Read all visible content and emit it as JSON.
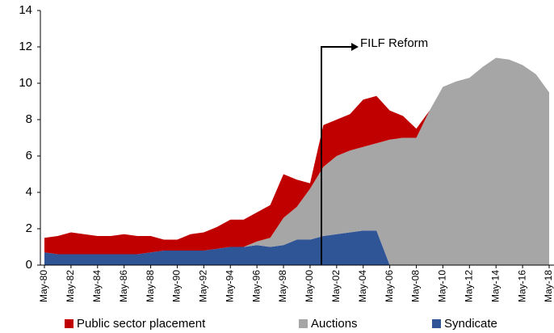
{
  "chart_data": {
    "type": "stacked_area",
    "categories": [
      "May-80",
      null,
      "May-82",
      null,
      "May-84",
      null,
      "May-86",
      null,
      "May-88",
      null,
      "May-90",
      null,
      "May-92",
      null,
      "May-94",
      null,
      "May-96",
      null,
      "May-98",
      null,
      "May-00",
      null,
      "May-02",
      null,
      "May-04",
      null,
      "May-06",
      null,
      "May-08",
      null,
      "May-10",
      null,
      "May-12",
      null,
      "May-14",
      null,
      "May-16",
      null,
      "May-18"
    ],
    "series": [
      {
        "name": "Public sector placement",
        "color": "#c00000",
        "values": [
          0.8,
          1.0,
          1.2,
          1.1,
          1.0,
          1.0,
          1.1,
          1.0,
          0.9,
          0.6,
          0.6,
          0.9,
          1.0,
          1.2,
          1.5,
          1.5,
          1.6,
          1.8,
          2.4,
          1.5,
          0.3,
          2.3,
          2.0,
          2.0,
          2.6,
          2.6,
          1.6,
          1.2,
          0.5,
          0,
          0,
          0,
          0,
          0,
          0,
          0,
          0,
          0,
          0
        ]
      },
      {
        "name": "Auctions",
        "color": "#a6a6a6",
        "values": [
          0,
          0,
          0,
          0,
          0,
          0,
          0,
          0,
          0,
          0,
          0,
          0,
          0,
          0,
          0,
          0,
          0.2,
          0.5,
          1.5,
          1.8,
          2.8,
          3.8,
          4.3,
          4.5,
          4.6,
          4.8,
          6.9,
          7.0,
          7.0,
          8.5,
          9.8,
          10.1,
          10.3,
          10.9,
          11.4,
          11.3,
          11.0,
          10.5,
          9.5
        ]
      },
      {
        "name": "Syndicate",
        "color": "#2f5597",
        "values": [
          0.7,
          0.6,
          0.6,
          0.6,
          0.6,
          0.6,
          0.6,
          0.6,
          0.7,
          0.8,
          0.8,
          0.8,
          0.8,
          0.9,
          1.0,
          1.0,
          1.1,
          1.0,
          1.1,
          1.4,
          1.4,
          1.6,
          1.7,
          1.8,
          1.9,
          1.9,
          0,
          0,
          0,
          0,
          0,
          0,
          0,
          0,
          0,
          0,
          0,
          0,
          0
        ]
      }
    ],
    "ylim": [
      0,
      14
    ],
    "yticks": [
      0,
      2,
      4,
      6,
      8,
      10,
      12,
      14
    ],
    "annotation": "FILF Reform",
    "legend": "bottom"
  }
}
